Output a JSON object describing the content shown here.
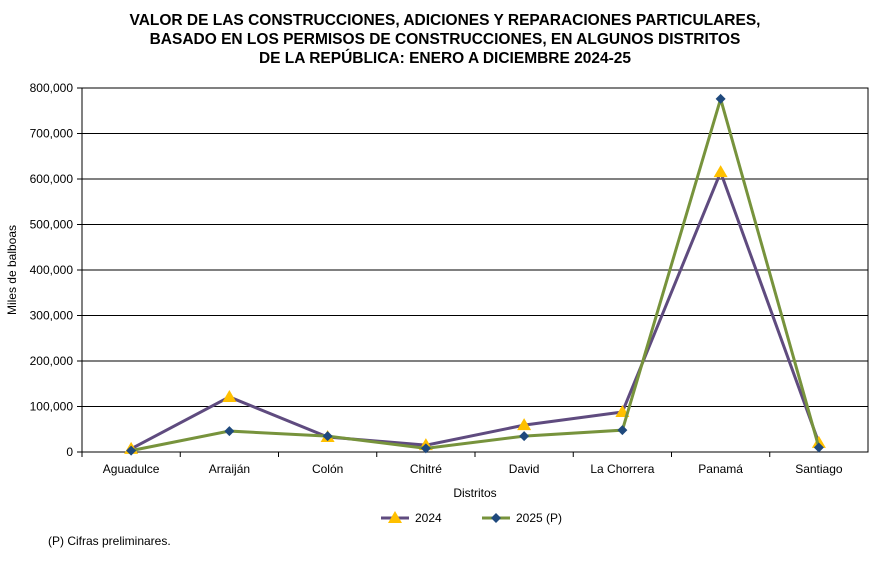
{
  "chart_data": {
    "type": "line",
    "title": "VALOR DE LAS CONSTRUCCIONES, ADICIONES Y REPARACIONES PARTICULARES,\nBASADO EN LOS PERMISOS DE CONSTRUCCIONES, EN ALGUNOS DISTRITOS\nDE LA REPÚBLICA: ENERO A DICIEMBRE 2024-25",
    "xlabel": "Distritos",
    "ylabel": "Miles de balboas",
    "ylim": [
      0,
      800000
    ],
    "yticks": [
      "0",
      "100,000",
      "200,000",
      "300,000",
      "400,000",
      "500,000",
      "600,000",
      "700,000",
      "800,000"
    ],
    "grid": true,
    "legend": "bottom",
    "categories": [
      "Aguadulce",
      "Arraiján",
      "Colón",
      "Chitré",
      "David",
      "La Chorrera",
      "Panamá",
      "Santiago"
    ],
    "series": [
      {
        "name": "2024",
        "line_color": "#5f4b7f",
        "marker": "triangle",
        "marker_color": "#ffc000",
        "values": [
          7000,
          121000,
          33000,
          15000,
          59000,
          88000,
          615000,
          20000
        ]
      },
      {
        "name": "2025 (P)",
        "line_color": "#77933c",
        "marker": "diamond",
        "marker_color": "#1f497d",
        "values": [
          3000,
          46000,
          35000,
          8000,
          35000,
          48000,
          776000,
          10000
        ]
      }
    ]
  },
  "note": "(P) Cifras  preliminares."
}
